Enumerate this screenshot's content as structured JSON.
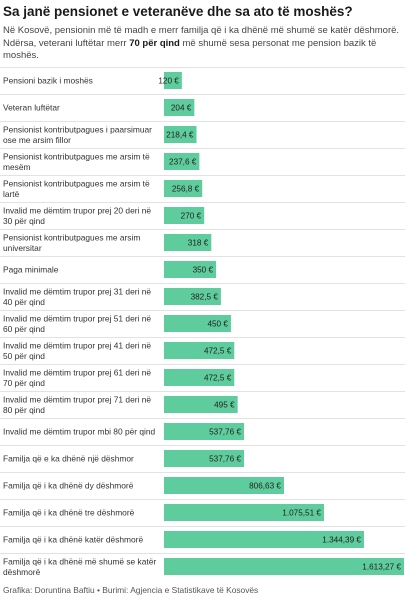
{
  "header": {
    "title": "Sa janë pensionet e veteranëve dhe sa ato të moshës?",
    "subtitle_part1": "Në Kosovë, pensionin më të madh e merr familja që i ka dhënë më shumë se katër dëshmorë. Ndërsa, veterani luftëtar merr ",
    "subtitle_bold": "70 për qind",
    "subtitle_part2": " më shumë sesa personat me pension bazik të moshës."
  },
  "footer": {
    "credit": "Grafika: Doruntina Baftiu • Burimi: Agjencia e Statistikave të Kosovës"
  },
  "colors": {
    "bar": "#5ecc9c",
    "separator": "#e2e2e2"
  },
  "chart_data": {
    "type": "bar",
    "orientation": "horizontal",
    "xlim": [
      0,
      1613.27
    ],
    "categories": [
      [
        "Pensioni bazik i moshës"
      ],
      [
        "Veteran luftëtar"
      ],
      [
        "Pensionist kontributpagues i paarsimuar",
        "ose me arsim fillor"
      ],
      [
        "Pensionist kontributpagues me arsim të",
        "mesëm"
      ],
      [
        "Pensionist kontributpagues me arsim të",
        "lartë"
      ],
      [
        "Invalid me dëmtim trupor prej 20 deri në",
        "30 për qind"
      ],
      [
        "Pensionist kontributpagues me arsim",
        "universitar"
      ],
      [
        "Paga minimale"
      ],
      [
        "Invalid me dëmtim trupor prej 31 deri në",
        "40 për qind"
      ],
      [
        "Invalid me dëmtim trupor prej 51 deri në",
        "60 për qind"
      ],
      [
        "Invalid me dëmtim trupor prej 41 deri në",
        "50 për qind"
      ],
      [
        "Invalid me dëmtim trupor prej 61 deri në",
        "70 për qind"
      ],
      [
        "Invalid me dëmtim trupor prej 71 deri në",
        "80 për qind"
      ],
      [
        "Invalid me dëmtim trupor mbi 80 për qind"
      ],
      [
        "Familja që e ka dhënë një dëshmor"
      ],
      [
        "Familja që i ka dhënë dy dëshmorë"
      ],
      [
        "Familja që i ka dhënë tre dëshmorë"
      ],
      [
        "Familja që i ka dhënë katër dëshmorë"
      ],
      [
        "Familja që i ka dhënë më shumë se katër",
        "dëshmorë"
      ]
    ],
    "values": [
      120,
      204,
      218.4,
      237.6,
      256.8,
      270,
      318,
      350,
      382.5,
      450,
      472.5,
      472.5,
      495,
      537.76,
      537.76,
      806.63,
      1075.51,
      1344.39,
      1613.27
    ],
    "value_labels": [
      "120 €",
      "204 €",
      "218,4 €",
      "237,6 €",
      "256,8 €",
      "270 €",
      "318 €",
      "350 €",
      "382,5 €",
      "450 €",
      "472,5 €",
      "472,5 €",
      "495 €",
      "537,76 €",
      "537,76 €",
      "806,63 €",
      "1.075,51 €",
      "1.344,39 €",
      "1.613,27 €"
    ]
  }
}
